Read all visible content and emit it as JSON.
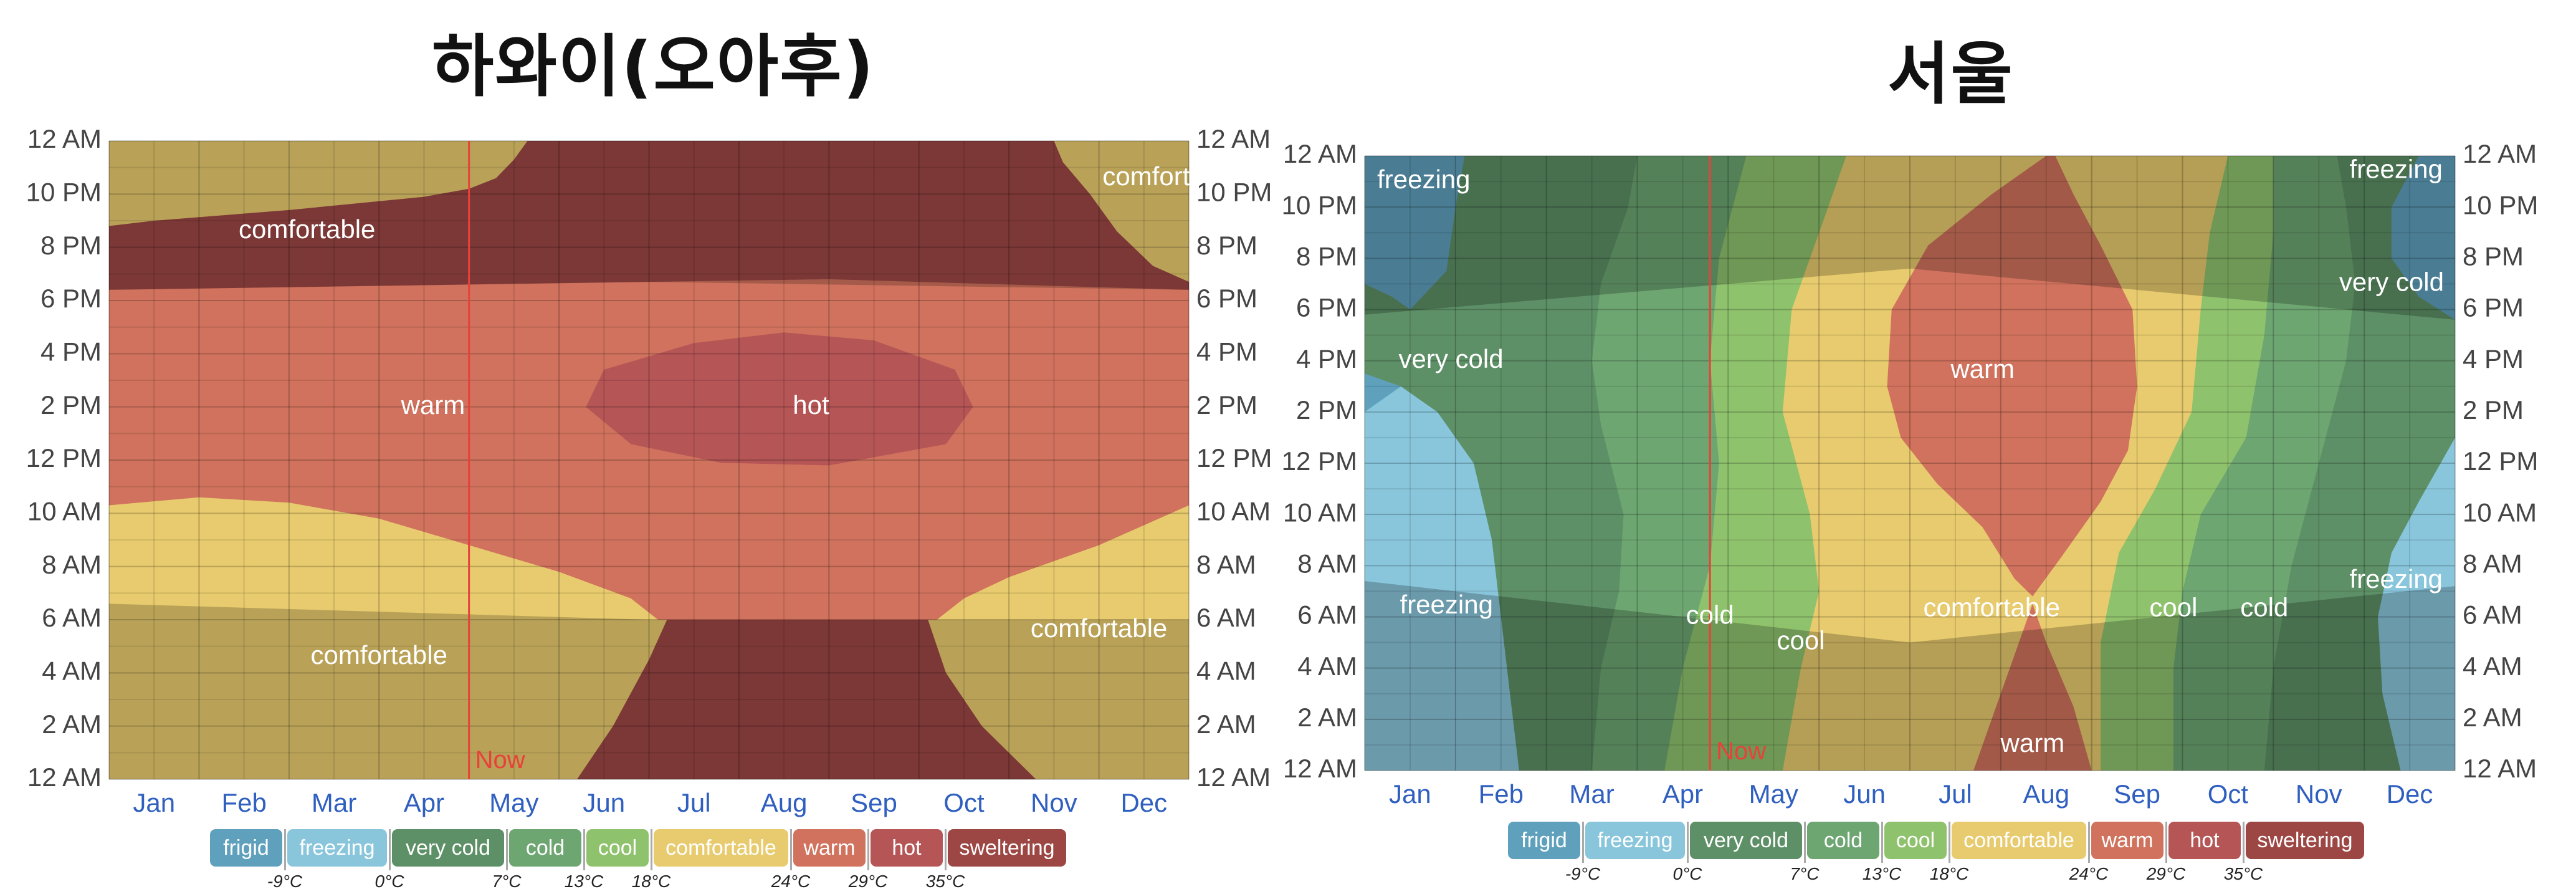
{
  "colors": {
    "frigid": "#5fa1bd",
    "freezing": "#89c6dc",
    "very cold": "#5d9066",
    "cold": "#6ea672",
    "cool": "#8fc26d",
    "comfortable": "#e8cb6e",
    "warm": "#d0725d",
    "hot": "#b55556",
    "sweltering": "#9c4744"
  },
  "legend": {
    "categories": [
      "frigid",
      "freezing",
      "very cold",
      "cold",
      "cool",
      "comfortable",
      "warm",
      "hot",
      "sweltering"
    ],
    "temps": [
      "-9°C",
      "0°C",
      "7°C",
      "13°C",
      "18°C",
      "24°C",
      "29°C",
      "35°C"
    ]
  },
  "chart_data": [
    {
      "type": "heatmap",
      "title": "하와이(오아후)",
      "xlabel": "",
      "ylabel": "",
      "x_ticks": [
        "Jan",
        "Feb",
        "Mar",
        "Apr",
        "May",
        "Jun",
        "Jul",
        "Aug",
        "Sep",
        "Oct",
        "Nov",
        "Dec"
      ],
      "y_ticks": [
        "12 AM",
        "2 AM",
        "4 AM",
        "6 AM",
        "8 AM",
        "10 AM",
        "12 PM",
        "2 PM",
        "4 PM",
        "6 PM",
        "8 PM",
        "10 PM",
        "12 AM"
      ],
      "now_label": "Now",
      "now_month": 4.0,
      "annotations": [
        {
          "text": "comfortable",
          "month": 2.2,
          "hour": 20.6
        },
        {
          "text": "comfortable",
          "month": 11.8,
          "hour": 22.6
        },
        {
          "text": "warm",
          "month": 3.6,
          "hour": 14.0
        },
        {
          "text": "hot",
          "month": 7.8,
          "hour": 14.0
        },
        {
          "text": "comfortable",
          "month": 3.0,
          "hour": 4.6
        },
        {
          "text": "comfortable",
          "month": 11.0,
          "hour": 5.6
        }
      ],
      "regions": [
        {
          "category": "comfortable",
          "points": [
            [
              0,
              0
            ],
            [
              12,
              0
            ],
            [
              12,
              24
            ],
            [
              0,
              24
            ]
          ]
        },
        {
          "category": "sweltering",
          "points": [
            [
              4.8,
              24
            ],
            [
              12,
              24
            ],
            [
              12,
              18.7
            ],
            [
              11.6,
              19.3
            ],
            [
              11.2,
              20.6
            ],
            [
              10.9,
              22.0
            ],
            [
              10.6,
              23.2
            ],
            [
              10.5,
              24.0
            ],
            [
              10.4,
              24.0
            ],
            [
              9.6,
              24.0
            ],
            [
              9.3,
              24.0
            ],
            [
              5.0,
              24.0
            ],
            [
              4.8,
              24.0
            ],
            [
              4.65,
              24.0
            ],
            [
              4.5,
              23.3
            ],
            [
              4.3,
              22.6
            ],
            [
              4.0,
              22.2
            ],
            [
              3.5,
              21.9
            ],
            [
              2.0,
              21.4
            ],
            [
              0.5,
              21.0
            ],
            [
              0,
              20.8
            ],
            [
              0,
              18.4
            ],
            [
              12,
              18.4
            ],
            [
              12,
              24
            ]
          ]
        },
        {
          "category": "warm",
          "points": [
            [
              0,
              18.4
            ],
            [
              0,
              10.3
            ],
            [
              1.0,
              10.6
            ],
            [
              2.0,
              10.4
            ],
            [
              3.0,
              9.8
            ],
            [
              4.0,
              8.8
            ],
            [
              5.0,
              7.8
            ],
            [
              5.8,
              6.8
            ],
            [
              6.1,
              6.0
            ],
            [
              9.2,
              6.0
            ],
            [
              9.5,
              6.8
            ],
            [
              10.0,
              7.6
            ],
            [
              11.0,
              8.8
            ],
            [
              12,
              10.3
            ],
            [
              12,
              18.4
            ],
            [
              8.0,
              18.8
            ],
            [
              4.0,
              18.6
            ],
            [
              0,
              18.4
            ]
          ]
        },
        {
          "category": "sweltering",
          "points": [
            [
              5.2,
              0
            ],
            [
              5.6,
              2.0
            ],
            [
              6.0,
              4.5
            ],
            [
              6.2,
              6.0
            ],
            [
              9.1,
              6.0
            ],
            [
              9.3,
              4.0
            ],
            [
              9.7,
              2.0
            ],
            [
              10.3,
              0
            ]
          ]
        },
        {
          "category": "hot",
          "points": [
            [
              5.3,
              14.0
            ],
            [
              5.5,
              15.4
            ],
            [
              6.5,
              16.4
            ],
            [
              7.5,
              16.8
            ],
            [
              8.5,
              16.5
            ],
            [
              9.4,
              15.4
            ],
            [
              9.6,
              14.0
            ],
            [
              9.3,
              12.6
            ],
            [
              8.0,
              11.8
            ],
            [
              6.8,
              11.9
            ],
            [
              5.8,
              12.6
            ]
          ]
        }
      ],
      "shading": [
        {
          "points": [
            [
              0,
              0
            ],
            [
              12,
              0
            ],
            [
              12,
              6.0
            ],
            [
              6,
              6.0
            ],
            [
              0,
              6.6
            ]
          ],
          "opacity": 0.2
        },
        {
          "points": [
            [
              0,
              18.4
            ],
            [
              6,
              18.7
            ],
            [
              12,
              18.4
            ],
            [
              12,
              24
            ],
            [
              0,
              24
            ]
          ],
          "opacity": 0.2
        }
      ]
    },
    {
      "type": "heatmap",
      "title": "서울",
      "xlabel": "",
      "ylabel": "",
      "x_ticks": [
        "Jan",
        "Feb",
        "Mar",
        "Apr",
        "May",
        "Jun",
        "Jul",
        "Aug",
        "Sep",
        "Oct",
        "Nov",
        "Dec"
      ],
      "y_ticks": [
        "12 AM",
        "2 AM",
        "4 AM",
        "6 AM",
        "8 AM",
        "10 AM",
        "12 PM",
        "2 PM",
        "4 PM",
        "6 PM",
        "8 PM",
        "10 PM",
        "12 AM"
      ],
      "now_label": "Now",
      "now_month": 3.8,
      "annotations": [
        {
          "text": "freezing",
          "month": 0.65,
          "hour": 23.0
        },
        {
          "text": "freezing",
          "month": 11.35,
          "hour": 23.4
        },
        {
          "text": "very cold",
          "month": 0.95,
          "hour": 16.0
        },
        {
          "text": "very cold",
          "month": 11.3,
          "hour": 19.0
        },
        {
          "text": "warm",
          "month": 6.8,
          "hour": 15.6
        },
        {
          "text": "freezing",
          "month": 0.9,
          "hour": 6.4
        },
        {
          "text": "freezing",
          "month": 11.35,
          "hour": 7.4
        },
        {
          "text": "cold",
          "month": 3.8,
          "hour": 6.0
        },
        {
          "text": "cool",
          "month": 4.8,
          "hour": 5.0
        },
        {
          "text": "comfortable",
          "month": 6.9,
          "hour": 6.3
        },
        {
          "text": "cool",
          "month": 8.9,
          "hour": 6.3
        },
        {
          "text": "cold",
          "month": 9.9,
          "hour": 6.3
        },
        {
          "text": "warm",
          "month": 7.35,
          "hour": 1.0
        }
      ],
      "regions": [
        {
          "category": "frigid",
          "points": [
            [
              0,
              0
            ],
            [
              12,
              0
            ],
            [
              12,
              24
            ],
            [
              0,
              24
            ]
          ]
        },
        {
          "category": "freezing",
          "points": [
            [
              0,
              0
            ],
            [
              0,
              14.0
            ],
            [
              0.4,
              15.0
            ],
            [
              0.8,
              14.0
            ],
            [
              1.2,
              12.0
            ],
            [
              1.4,
              9.0
            ],
            [
              1.5,
              6.0
            ],
            [
              1.6,
              3.0
            ],
            [
              1.7,
              0
            ]
          ]
        },
        {
          "category": "freezing",
          "points": [
            [
              12,
              0
            ],
            [
              11.4,
              0
            ],
            [
              11.2,
              3.0
            ],
            [
              11.15,
              6.0
            ],
            [
              11.3,
              8.5
            ],
            [
              11.6,
              10.5
            ],
            [
              12,
              13.0
            ]
          ]
        },
        {
          "category": "very cold",
          "points": [
            [
              1.7,
              0
            ],
            [
              1.6,
              3.0
            ],
            [
              1.5,
              6.0
            ],
            [
              1.4,
              9.0
            ],
            [
              1.2,
              12.0
            ],
            [
              0.8,
              14.0
            ],
            [
              0.4,
              15.0
            ],
            [
              0,
              15.5
            ],
            [
              0,
              19.0
            ],
            [
              0.3,
              18.5
            ],
            [
              0.5,
              18.0
            ],
            [
              0.9,
              19.5
            ],
            [
              1.0,
              22.0
            ],
            [
              1.1,
              24.0
            ],
            [
              11.6,
              24.0
            ],
            [
              11.3,
              22.0
            ],
            [
              11.3,
              20.0
            ],
            [
              11.6,
              18.5
            ],
            [
              12,
              17.6
            ],
            [
              12,
              13.0
            ],
            [
              11.6,
              10.5
            ],
            [
              11.3,
              8.5
            ],
            [
              11.15,
              6.0
            ],
            [
              11.2,
              3.0
            ],
            [
              11.4,
              0
            ]
          ]
        },
        {
          "category": "cold",
          "points": [
            [
              2.5,
              0
            ],
            [
              2.6,
              4.0
            ],
            [
              2.8,
              7.0
            ],
            [
              2.85,
              10.0
            ],
            [
              2.6,
              13.5
            ],
            [
              2.5,
              16.0
            ],
            [
              2.6,
              19.0
            ],
            [
              2.9,
              22.0
            ],
            [
              3.0,
              24.0
            ],
            [
              10.7,
              24.0
            ],
            [
              10.8,
              22.0
            ],
            [
              10.9,
              19.0
            ],
            [
              10.8,
              16.0
            ],
            [
              10.5,
              12.0
            ],
            [
              10.2,
              8.0
            ],
            [
              10.0,
              4.0
            ],
            [
              9.9,
              0
            ]
          ]
        },
        {
          "category": "cool",
          "points": [
            [
              3.3,
              0
            ],
            [
              3.5,
              4.0
            ],
            [
              3.8,
              8.0
            ],
            [
              3.9,
              12.0
            ],
            [
              3.8,
              16.0
            ],
            [
              3.9,
              20.0
            ],
            [
              4.2,
              24.0
            ],
            [
              10.0,
              24.0
            ],
            [
              10.0,
              21.0
            ],
            [
              9.9,
              17.0
            ],
            [
              9.7,
              13.0
            ],
            [
              9.2,
              10.0
            ],
            [
              9.0,
              7.0
            ],
            [
              8.9,
              4.0
            ],
            [
              8.9,
              0
            ]
          ]
        },
        {
          "category": "comfortable",
          "points": [
            [
              4.6,
              0
            ],
            [
              4.8,
              4.0
            ],
            [
              5.0,
              7.0
            ],
            [
              4.9,
              10.0
            ],
            [
              4.6,
              14.0
            ],
            [
              4.7,
              18.0
            ],
            [
              5.0,
              21.0
            ],
            [
              5.3,
              24.0
            ],
            [
              9.5,
              24.0
            ],
            [
              9.3,
              21.0
            ],
            [
              9.2,
              18.0
            ],
            [
              9.1,
              14.0
            ],
            [
              8.7,
              11.0
            ],
            [
              8.3,
              8.5
            ],
            [
              8.1,
              5.0
            ],
            [
              8.1,
              0
            ]
          ]
        },
        {
          "category": "warm",
          "points": [
            [
              7.5,
              24.0
            ],
            [
              6.9,
              22.5
            ],
            [
              6.2,
              20.5
            ],
            [
              5.8,
              18.0
            ],
            [
              5.75,
              15.0
            ],
            [
              5.9,
              13.0
            ],
            [
              6.3,
              11.2
            ],
            [
              6.8,
              9.5
            ],
            [
              7.15,
              7.5
            ],
            [
              7.35,
              6.8
            ],
            [
              7.7,
              8.5
            ],
            [
              8.1,
              10.5
            ],
            [
              8.4,
              12.5
            ],
            [
              8.5,
              15.0
            ],
            [
              8.45,
              18.0
            ],
            [
              8.1,
              20.5
            ],
            [
              7.8,
              22.5
            ],
            [
              7.6,
              24.0
            ]
          ]
        },
        {
          "category": "warm",
          "points": [
            [
              6.7,
              0
            ],
            [
              6.95,
              2.5
            ],
            [
              7.2,
              5.0
            ],
            [
              7.35,
              6.5
            ],
            [
              7.5,
              5.0
            ],
            [
              7.8,
              2.5
            ],
            [
              8.0,
              0
            ]
          ]
        }
      ],
      "shading": [
        {
          "points": [
            [
              0,
              0
            ],
            [
              12,
              0
            ],
            [
              12,
              7.2
            ],
            [
              6,
              5.0
            ],
            [
              0,
              7.4
            ]
          ],
          "opacity": 0.22
        },
        {
          "points": [
            [
              0,
              17.8
            ],
            [
              6,
              19.6
            ],
            [
              12,
              17.6
            ],
            [
              12,
              24
            ],
            [
              0,
              24
            ]
          ],
          "opacity": 0.22
        }
      ]
    }
  ]
}
